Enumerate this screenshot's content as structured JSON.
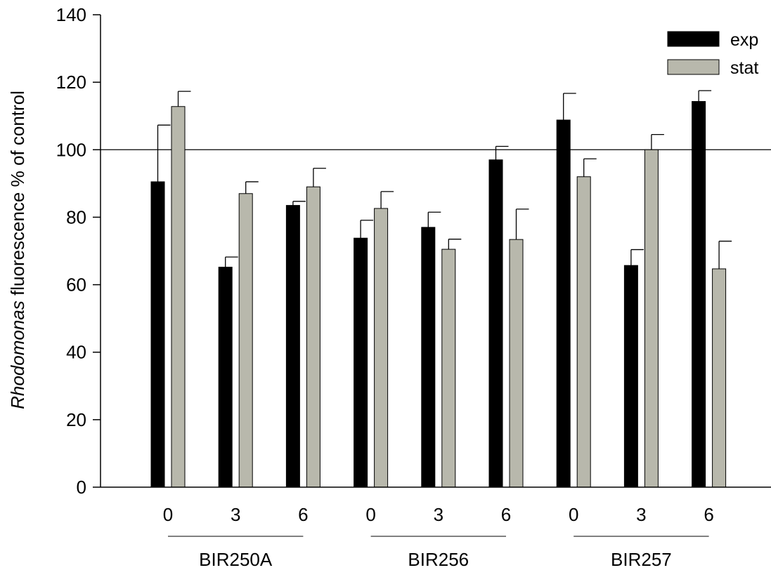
{
  "chart_data": {
    "type": "bar",
    "ylabel_italic": "Rhodomonas",
    "ylabel_rest": " fluorescence % of control",
    "xlabel": "",
    "ylim": [
      0,
      140
    ],
    "yticks": [
      0,
      20,
      40,
      60,
      80,
      100,
      120,
      140
    ],
    "reference_line": 100,
    "grid": false,
    "legend_position": "top-right",
    "groups": [
      "BIR250A",
      "BIR256",
      "BIR257"
    ],
    "categories": [
      "0",
      "3",
      "6",
      "0",
      "3",
      "6",
      "0",
      "3",
      "6"
    ],
    "series": [
      {
        "name": "exp",
        "color": "#000000",
        "values": [
          90.5,
          65.2,
          83.5,
          73.8,
          77.0,
          97.0,
          108.8,
          65.7,
          114.3
        ],
        "errors": [
          16.8,
          3.0,
          1.2,
          5.3,
          4.5,
          4.0,
          7.9,
          4.7,
          3.2
        ]
      },
      {
        "name": "stat",
        "color": "#b8b8ac",
        "values": [
          112.8,
          87.0,
          89.0,
          82.6,
          70.5,
          73.4,
          92.0,
          100.0,
          64.7
        ],
        "errors": [
          4.5,
          3.5,
          5.5,
          5.0,
          3.0,
          9.0,
          5.3,
          4.5,
          8.2
        ]
      }
    ]
  }
}
